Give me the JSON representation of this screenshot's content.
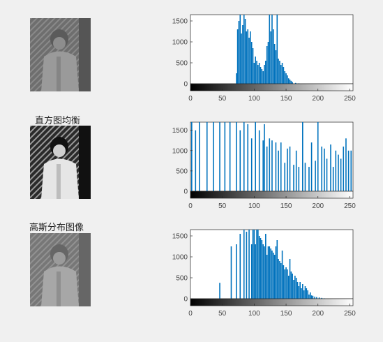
{
  "panels": [
    {
      "id": "original",
      "title": "",
      "image_label": "original-image-thumbnail"
    },
    {
      "id": "equalized",
      "title": "直方图均衡",
      "image_label": "equalized-image-thumbnail"
    },
    {
      "id": "gaussian",
      "title": "高斯分布图像",
      "image_label": "gaussian-image-thumbnail"
    }
  ],
  "chart_data": [
    {
      "type": "bar",
      "xlim": [
        0,
        255
      ],
      "ylim": [
        0,
        1650
      ],
      "x_ticks": [
        0,
        50,
        100,
        150,
        200,
        250
      ],
      "y_ticks": [
        0,
        500,
        1000,
        1500
      ],
      "colorbar": "grayscale",
      "series": [
        {
          "x": [
            72,
            74,
            76,
            78,
            80,
            82,
            84,
            86,
            88,
            90,
            92,
            94,
            96,
            98,
            100,
            102,
            104,
            106,
            108,
            110,
            112,
            114,
            116,
            118,
            120,
            122,
            124,
            126,
            128,
            130,
            132,
            134,
            136,
            138,
            140,
            142,
            144,
            146,
            148,
            150,
            152,
            154,
            156,
            158,
            160,
            165,
            170
          ],
          "values": [
            250,
            1300,
            1500,
            1650,
            1200,
            1400,
            1650,
            1550,
            1250,
            1300,
            1100,
            1250,
            1000,
            850,
            500,
            650,
            550,
            450,
            500,
            400,
            350,
            300,
            450,
            550,
            900,
            1000,
            1650,
            1250,
            1650,
            1300,
            950,
            800,
            1650,
            600,
            550,
            450,
            500,
            400,
            300,
            250,
            200,
            130,
            100,
            70,
            40,
            20,
            10
          ]
        }
      ]
    },
    {
      "type": "bar",
      "xlim": [
        0,
        255
      ],
      "ylim": [
        0,
        1700
      ],
      "x_ticks": [
        0,
        50,
        100,
        150,
        200,
        250
      ],
      "y_ticks": [
        0,
        500,
        1000,
        1500
      ],
      "colorbar": "grayscale",
      "series": [
        {
          "x": [
            2,
            8,
            14,
            26,
            36,
            46,
            54,
            62,
            72,
            78,
            84,
            90,
            96,
            102,
            108,
            114,
            116,
            120,
            124,
            128,
            134,
            138,
            142,
            148,
            152,
            156,
            162,
            166,
            170,
            176,
            180,
            186,
            190,
            196,
            200,
            206,
            210,
            214,
            220,
            224,
            228,
            232,
            236,
            240,
            244,
            248,
            252
          ],
          "values": [
            1700,
            1500,
            1700,
            1700,
            1700,
            1700,
            1700,
            1700,
            1700,
            1500,
            1700,
            1650,
            1300,
            1700,
            1500,
            1250,
            1650,
            1100,
            1300,
            1250,
            1200,
            1000,
            1200,
            700,
            1050,
            1100,
            650,
            1000,
            600,
            1700,
            700,
            600,
            1200,
            750,
            1700,
            1100,
            1050,
            800,
            1150,
            600,
            1000,
            900,
            800,
            1100,
            1300,
            1000,
            1000
          ]
        }
      ]
    },
    {
      "type": "bar",
      "xlim": [
        0,
        255
      ],
      "ylim": [
        0,
        1650
      ],
      "x_ticks": [
        0,
        50,
        100,
        150,
        200,
        250
      ],
      "y_ticks": [
        0,
        500,
        1000,
        1500
      ],
      "colorbar": "grayscale",
      "series": [
        {
          "x": [
            46,
            64,
            72,
            78,
            84,
            88,
            92,
            96,
            98,
            100,
            102,
            104,
            106,
            108,
            110,
            112,
            114,
            116,
            118,
            120,
            122,
            124,
            126,
            128,
            130,
            132,
            134,
            136,
            138,
            140,
            142,
            144,
            146,
            148,
            150,
            152,
            154,
            156,
            158,
            160,
            162,
            164,
            166,
            168,
            170,
            172,
            174,
            176,
            178,
            180,
            182,
            184,
            186,
            188,
            190,
            192,
            195,
            198,
            202,
            206,
            210
          ],
          "values": [
            380,
            1250,
            1300,
            1550,
            1650,
            1600,
            1650,
            1300,
            1650,
            1650,
            1300,
            1650,
            1650,
            1500,
            1450,
            1400,
            1300,
            1250,
            1550,
            1050,
            1250,
            1250,
            1200,
            1150,
            1100,
            1050,
            1250,
            1400,
            950,
            900,
            850,
            1150,
            800,
            700,
            750,
            700,
            550,
            950,
            650,
            600,
            450,
            550,
            500,
            400,
            300,
            400,
            250,
            350,
            200,
            300,
            250,
            200,
            100,
            150,
            80,
            70,
            50,
            40,
            30,
            20,
            10
          ]
        }
      ]
    }
  ]
}
